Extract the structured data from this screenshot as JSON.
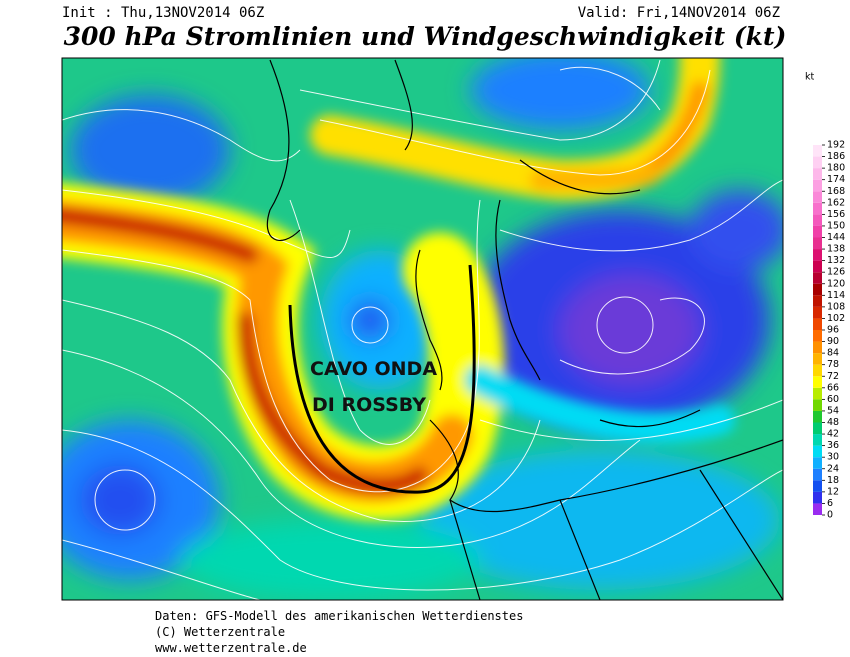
{
  "header": {
    "init": "Init : Thu,13NOV2014 06Z",
    "valid": "Valid: Fri,14NOV2014 06Z",
    "title": "300 hPa Stromlinien und Windgeschwindigkeit (kt)"
  },
  "annotation": {
    "line1": "CAVO ONDA",
    "line2": "DI ROSSBY"
  },
  "legend": {
    "unit": "kt",
    "ticks": [
      0,
      6,
      12,
      18,
      24,
      30,
      36,
      42,
      48,
      54,
      60,
      66,
      72,
      78,
      84,
      90,
      96,
      102,
      108,
      114,
      120,
      126,
      132,
      138,
      144,
      150,
      156,
      162,
      168,
      174,
      180,
      186,
      192
    ],
    "colors": [
      "#9a2cf0",
      "#3030ee",
      "#1450f0",
      "#1e80ff",
      "#10b0ff",
      "#00dcf4",
      "#00d8b0",
      "#00cc70",
      "#20c830",
      "#70d800",
      "#b8ec00",
      "#ffff00",
      "#ffd800",
      "#ffb400",
      "#ff9000",
      "#ff6c00",
      "#f04800",
      "#d82800",
      "#c01400",
      "#a80000",
      "#b80030",
      "#cc0050",
      "#dc1070",
      "#e83090",
      "#f040a8",
      "#f458bc",
      "#f870cc",
      "#fa88d8",
      "#fca0e2",
      "#fdb8ea",
      "#fed0f2",
      "#ffe4f8"
    ]
  },
  "footer": {
    "line1": "Daten: GFS-Modell des amerikanischen Wetterdienstes",
    "line2": "(C) Wetterzentrale",
    "line3": "www.wetterzentrale.de"
  }
}
